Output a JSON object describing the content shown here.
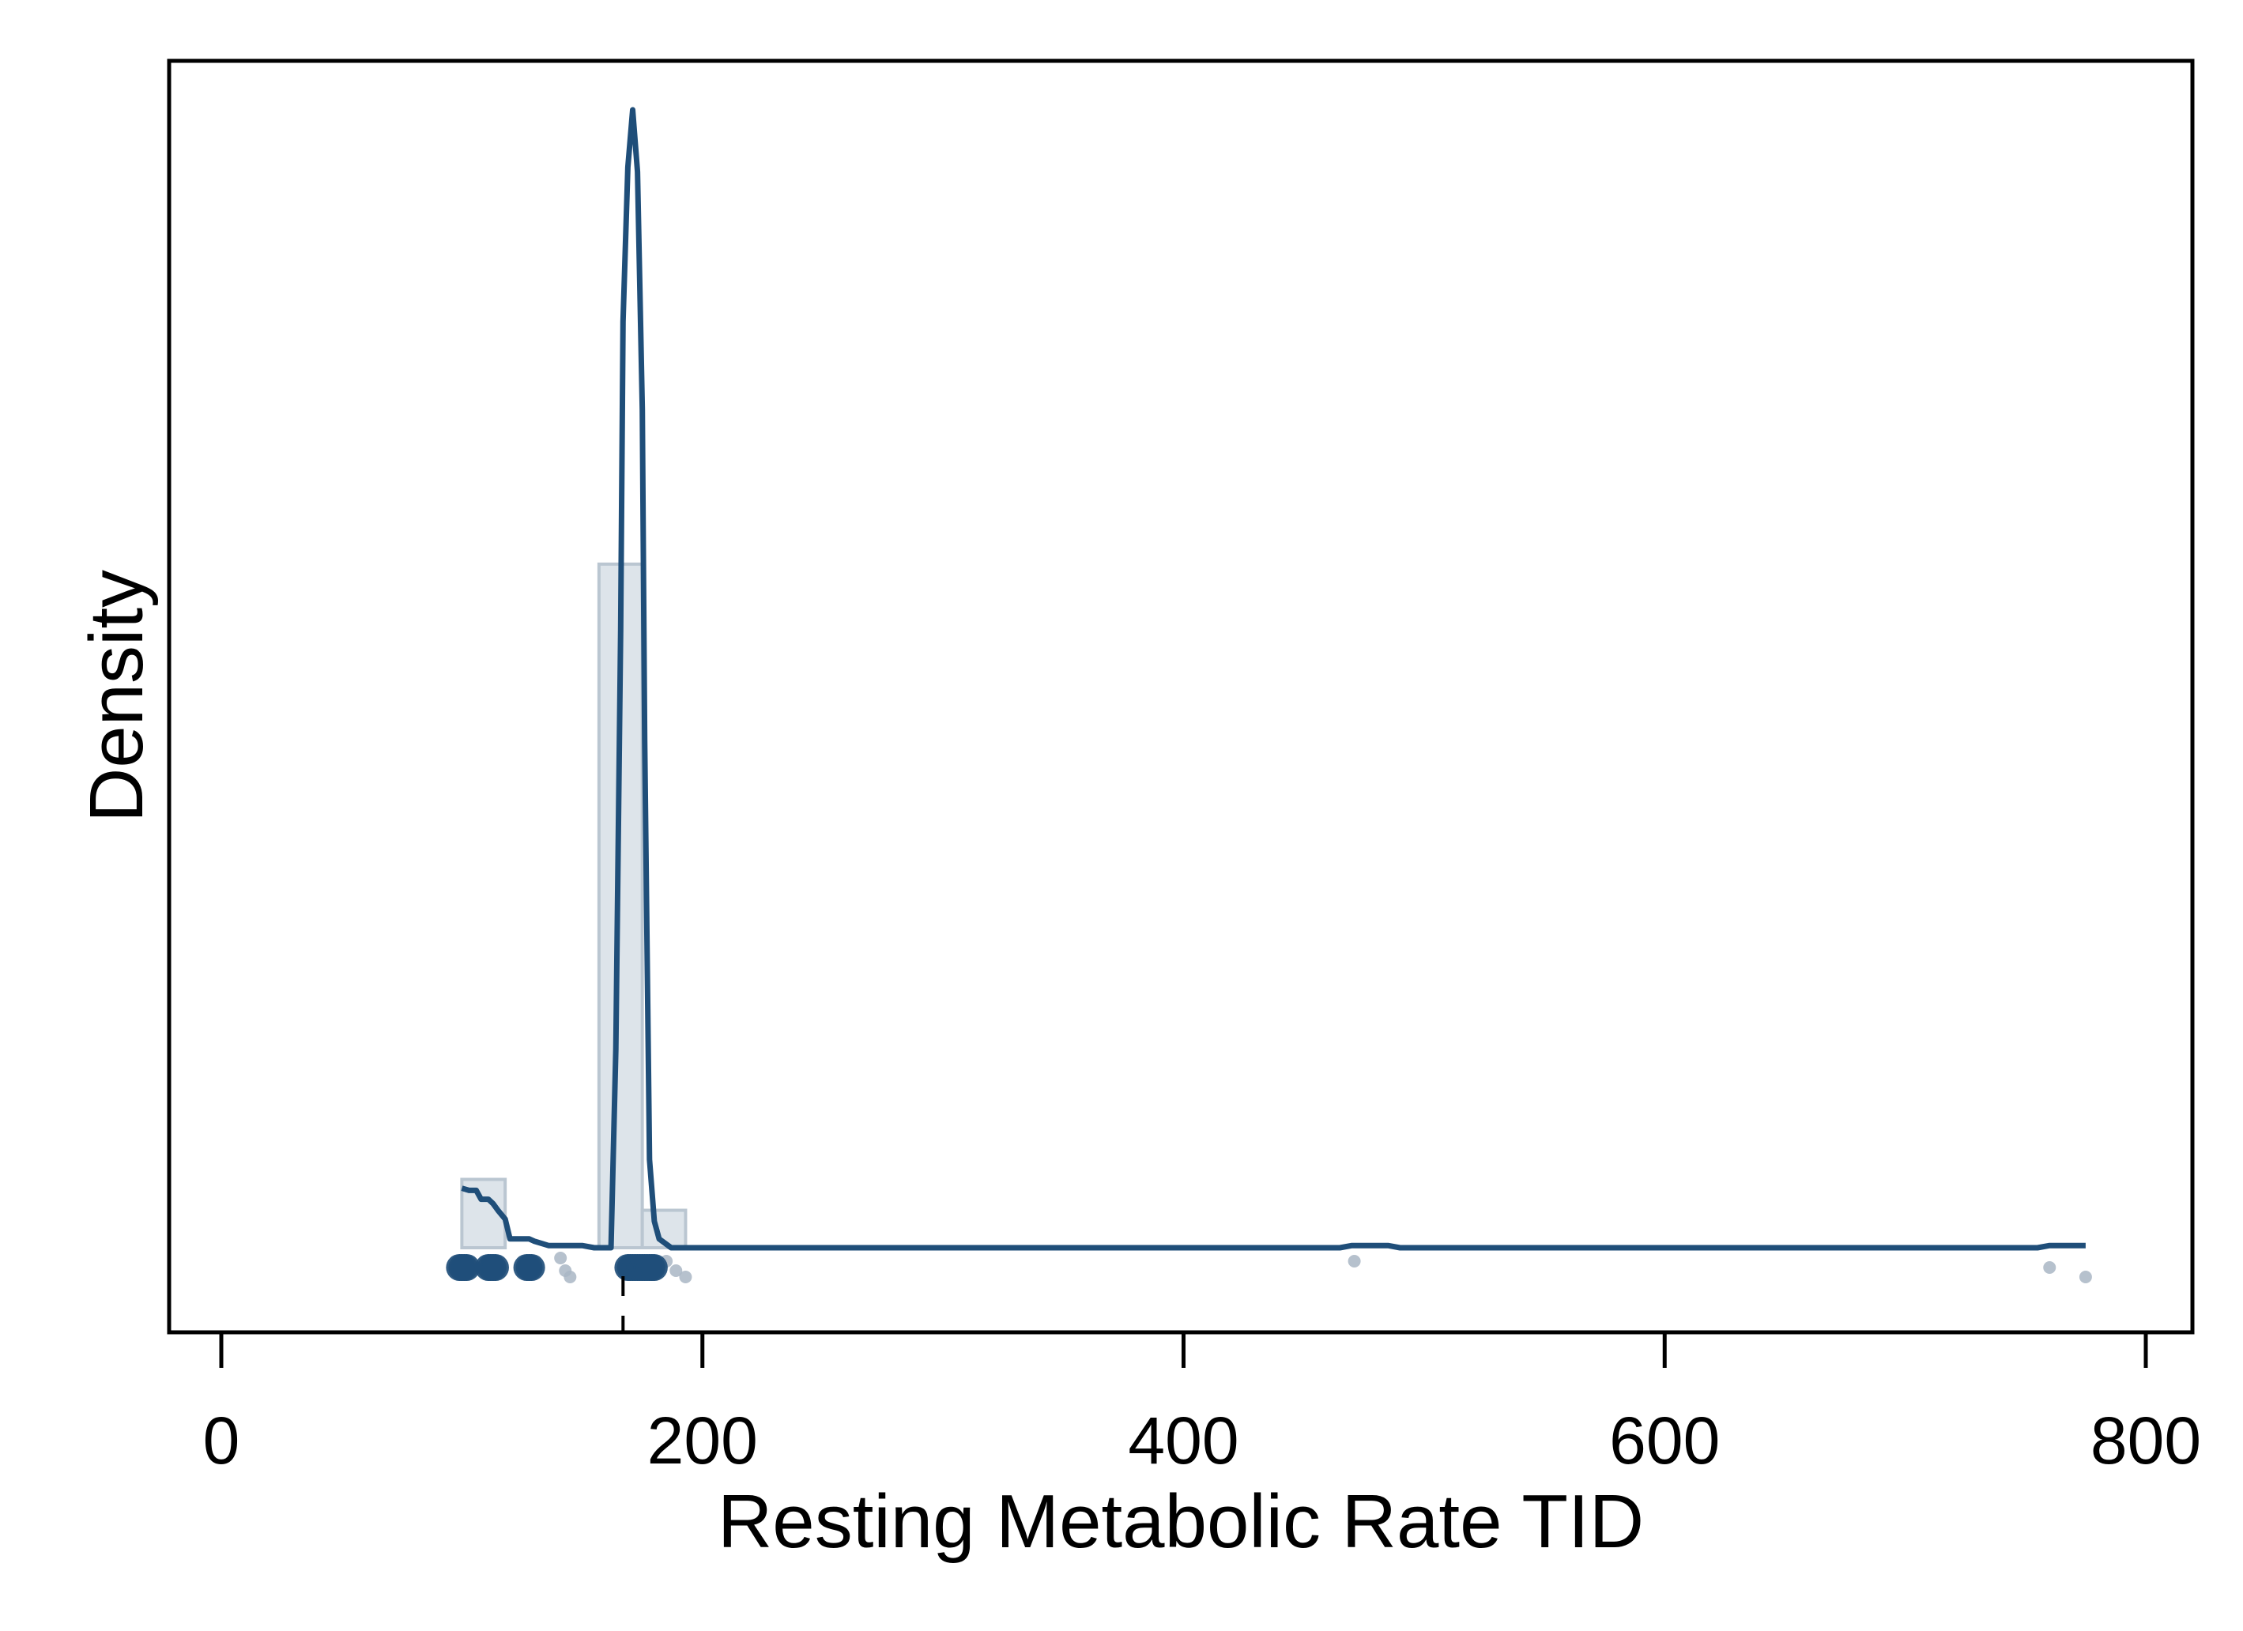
{
  "chart_data": {
    "type": "histogram-density",
    "xlabel": "Resting Metabolic Rate TID",
    "ylabel": "Density",
    "xlim": [
      -10,
      820
    ],
    "ylim": [
      -0.0037,
      0.0545
    ],
    "x_ticks": [
      0,
      200,
      400,
      600,
      800
    ],
    "y_ticks": [],
    "grid": false,
    "legend": "none",
    "histogram": {
      "bins": [
        {
          "x0": 100,
          "x1": 118,
          "density": 0.0031
        },
        {
          "x0": 118,
          "x1": 136,
          "density": 0.0
        },
        {
          "x0": 136,
          "x1": 154,
          "density": 0.0
        },
        {
          "x0": 157,
          "x1": 175,
          "density": 0.031
        },
        {
          "x0": 175,
          "x1": 193,
          "density": 0.0017
        }
      ]
    },
    "density_curve": [
      [
        100,
        0.0027
      ],
      [
        103,
        0.0026
      ],
      [
        106,
        0.0026
      ],
      [
        108,
        0.0022
      ],
      [
        111,
        0.0022
      ],
      [
        113,
        0.002
      ],
      [
        115,
        0.0017
      ],
      [
        118,
        0.0013
      ],
      [
        120,
        0.0004
      ],
      [
        122,
        0.0004
      ],
      [
        124,
        0.0004
      ],
      [
        126,
        0.0004
      ],
      [
        128,
        0.0004
      ],
      [
        130,
        0.0003
      ],
      [
        136,
        0.0001
      ],
      [
        140,
        0.0001
      ],
      [
        144,
        0.0001
      ],
      [
        150,
        0.0001
      ],
      [
        155,
        0.0
      ],
      [
        162,
        0.0
      ],
      [
        164,
        0.009
      ],
      [
        166,
        0.028
      ],
      [
        167,
        0.042
      ],
      [
        169,
        0.049
      ],
      [
        171,
        0.0516
      ],
      [
        173,
        0.0488
      ],
      [
        175,
        0.038
      ],
      [
        176,
        0.023
      ],
      [
        178,
        0.004
      ],
      [
        180,
        0.0012
      ],
      [
        182,
        0.0004
      ],
      [
        187,
        0.0
      ],
      [
        200,
        0.0
      ],
      [
        300,
        0.0
      ],
      [
        400,
        0.0
      ],
      [
        465,
        0.0
      ],
      [
        470,
        0.0001
      ],
      [
        485,
        0.0001
      ],
      [
        490,
        0.0
      ],
      [
        600,
        0.0
      ],
      [
        700,
        0.0
      ],
      [
        755,
        0.0
      ],
      [
        760,
        0.0001
      ],
      [
        775,
        0.0001
      ]
    ],
    "observations": {
      "dark_points": [
        99,
        100,
        101,
        102,
        111,
        112,
        113,
        114,
        127,
        128,
        129,
        169,
        170,
        171,
        172,
        173,
        174,
        175,
        176,
        177,
        178,
        179,
        180
      ],
      "faint_points": [
        {
          "x": 141,
          "j": 1.5
        },
        {
          "x": 143,
          "j": -0.5
        },
        {
          "x": 145,
          "j": -1.5
        },
        {
          "x": 185,
          "j": 1
        },
        {
          "x": 189,
          "j": -0.5
        },
        {
          "x": 193,
          "j": -1.5
        },
        {
          "x": 471,
          "j": 1
        },
        {
          "x": 760,
          "j": 0
        },
        {
          "x": 775,
          "j": -1.5
        }
      ]
    },
    "median_marker": 167,
    "colors": {
      "line": "#1f4e79",
      "bar_fill": "#dde4ea",
      "bar_stroke": "#bac6d1",
      "point_dark": "#1f4e79",
      "point_faint": "#a9b6c4",
      "axis": "#000000"
    }
  }
}
